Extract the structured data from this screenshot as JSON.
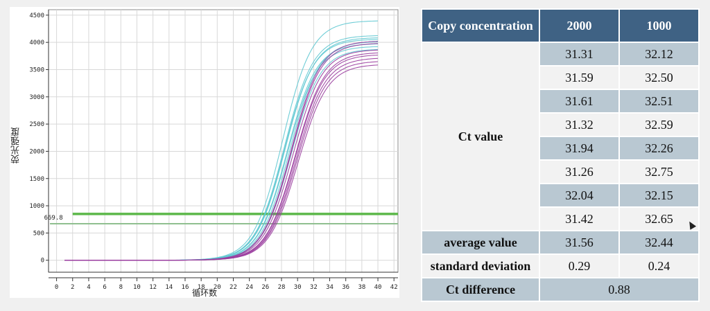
{
  "chart_data": {
    "type": "line",
    "ylabel": "荧光强度",
    "xlabel": "循环数",
    "x_ticks": [
      0,
      2,
      4,
      6,
      8,
      10,
      12,
      14,
      16,
      18,
      20,
      22,
      24,
      26,
      28,
      30,
      32,
      34,
      36,
      38,
      40,
      42
    ],
    "y_ticks": [
      0,
      500,
      1000,
      1500,
      2000,
      2500,
      3000,
      3500,
      4000,
      4500
    ],
    "xlim": [
      -1,
      42.5
    ],
    "ylim": [
      -220,
      4600
    ],
    "threshold": {
      "label": "669.8",
      "value": 669.8,
      "color": "#8fbf8f"
    },
    "threshold_upper": {
      "value": 850,
      "color": "#5cb84a"
    },
    "series_colors": {
      "cyan": "#5fc8d2",
      "purple": "#9a3d9e"
    },
    "series": [
      {
        "color": "cyan",
        "ct": 31.26,
        "max": 4400
      },
      {
        "color": "cyan",
        "ct": 31.32,
        "max": 4130
      },
      {
        "color": "cyan",
        "ct": 31.31,
        "max": 4060
      },
      {
        "color": "cyan",
        "ct": 31.42,
        "max": 4090
      },
      {
        "color": "cyan",
        "ct": 31.59,
        "max": 3980
      },
      {
        "color": "cyan",
        "ct": 31.61,
        "max": 3930
      },
      {
        "color": "cyan",
        "ct": 31.94,
        "max": 4020
      },
      {
        "color": "cyan",
        "ct": 32.04,
        "max": 3880
      },
      {
        "color": "purple",
        "ct": 32.12,
        "max": 4030
      },
      {
        "color": "purple",
        "ct": 32.15,
        "max": 3990
      },
      {
        "color": "purple",
        "ct": 32.26,
        "max": 3870
      },
      {
        "color": "purple",
        "ct": 32.5,
        "max": 3820
      },
      {
        "color": "purple",
        "ct": 32.51,
        "max": 3780
      },
      {
        "color": "purple",
        "ct": 32.59,
        "max": 3720
      },
      {
        "color": "purple",
        "ct": 32.65,
        "max": 3660
      },
      {
        "color": "purple",
        "ct": 32.75,
        "max": 3600
      }
    ]
  },
  "table": {
    "header": {
      "c0": "Copy concentration",
      "c1": "2000",
      "c2": "1000"
    },
    "ct_label": "Ct value",
    "ct_values": [
      [
        "31.31",
        "32.12"
      ],
      [
        "31.59",
        "32.50"
      ],
      [
        "31.61",
        "32.51"
      ],
      [
        "31.32",
        "32.59"
      ],
      [
        "31.94",
        "32.26"
      ],
      [
        "31.26",
        "32.75"
      ],
      [
        "32.04",
        "32.15"
      ],
      [
        "31.42",
        "32.65"
      ]
    ],
    "average": {
      "label": "average value",
      "v1": "31.56",
      "v2": "32.44"
    },
    "stdev": {
      "label": "standard deviation",
      "v1": "0.29",
      "v2": "0.24"
    },
    "difference": {
      "label": "Ct difference",
      "value": "0.88"
    }
  }
}
